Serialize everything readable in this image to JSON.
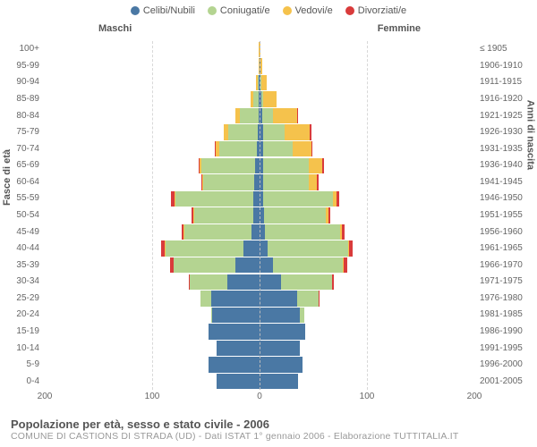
{
  "legend": [
    {
      "label": "Celibi/Nubili",
      "color": "#4a78a4"
    },
    {
      "label": "Coniugati/e",
      "color": "#b4d491"
    },
    {
      "label": "Vedovi/e",
      "color": "#f5c24c"
    },
    {
      "label": "Divorziati/e",
      "color": "#d93b3b"
    }
  ],
  "headers": {
    "male": "Maschi",
    "female": "Femmine"
  },
  "axis_left_title": "Fasce di età",
  "axis_right_title": "Anni di nascita",
  "footer_title": "Popolazione per età, sesso e stato civile - 2006",
  "footer_sub": "COMUNE DI CASTIONS DI STRADA (UD) - Dati ISTAT 1° gennaio 2006 - Elaborazione TUTTITALIA.IT",
  "x_max": 200,
  "x_ticks": [
    200,
    100,
    0,
    100,
    200
  ],
  "chart": {
    "background": "#ffffff",
    "grid_color": "#d8d8d8",
    "center_color": "#bbbbbb",
    "bar_gap": 1,
    "colors": {
      "single": "#4a78a4",
      "married": "#b4d491",
      "widowed": "#f5c24c",
      "divorced": "#d93b3b"
    }
  },
  "rows": [
    {
      "age": "100+",
      "birth": "≤ 1905",
      "m": {
        "single": 0,
        "married": 0,
        "widowed": 2,
        "divorced": 0
      },
      "f": {
        "single": 0,
        "married": 0,
        "widowed": 2,
        "divorced": 0
      }
    },
    {
      "age": "95-99",
      "birth": "1906-1910",
      "m": {
        "single": 0,
        "married": 0,
        "widowed": 1,
        "divorced": 0
      },
      "f": {
        "single": 1,
        "married": 0,
        "widowed": 4,
        "divorced": 0
      }
    },
    {
      "age": "90-94",
      "birth": "1911-1915",
      "m": {
        "single": 1,
        "married": 2,
        "widowed": 3,
        "divorced": 0
      },
      "f": {
        "single": 2,
        "married": 1,
        "widowed": 10,
        "divorced": 0
      }
    },
    {
      "age": "85-89",
      "birth": "1916-1920",
      "m": {
        "single": 1,
        "married": 10,
        "widowed": 5,
        "divorced": 0
      },
      "f": {
        "single": 3,
        "married": 4,
        "widowed": 25,
        "divorced": 0
      }
    },
    {
      "age": "80-84",
      "birth": "1921-1925",
      "m": {
        "single": 2,
        "married": 35,
        "widowed": 8,
        "divorced": 0
      },
      "f": {
        "single": 5,
        "married": 20,
        "widowed": 45,
        "divorced": 2
      }
    },
    {
      "age": "75-79",
      "birth": "1926-1930",
      "m": {
        "single": 3,
        "married": 55,
        "widowed": 8,
        "divorced": 1
      },
      "f": {
        "single": 6,
        "married": 40,
        "widowed": 48,
        "divorced": 2
      }
    },
    {
      "age": "70-74",
      "birth": "1931-1935",
      "m": {
        "single": 5,
        "married": 70,
        "widowed": 6,
        "divorced": 2
      },
      "f": {
        "single": 6,
        "married": 55,
        "widowed": 35,
        "divorced": 3
      }
    },
    {
      "age": "65-69",
      "birth": "1936-1940",
      "m": {
        "single": 8,
        "married": 100,
        "widowed": 4,
        "divorced": 2
      },
      "f": {
        "single": 7,
        "married": 85,
        "widowed": 25,
        "divorced": 3
      }
    },
    {
      "age": "60-64",
      "birth": "1941-1945",
      "m": {
        "single": 10,
        "married": 95,
        "widowed": 2,
        "divorced": 2
      },
      "f": {
        "single": 6,
        "married": 85,
        "widowed": 15,
        "divorced": 4
      }
    },
    {
      "age": "55-59",
      "birth": "1946-1950",
      "m": {
        "single": 12,
        "married": 145,
        "widowed": 2,
        "divorced": 6
      },
      "f": {
        "single": 6,
        "married": 130,
        "widowed": 8,
        "divorced": 5
      }
    },
    {
      "age": "50-54",
      "birth": "1951-1955",
      "m": {
        "single": 12,
        "married": 110,
        "widowed": 1,
        "divorced": 3
      },
      "f": {
        "single": 8,
        "married": 115,
        "widowed": 5,
        "divorced": 4
      }
    },
    {
      "age": "45-49",
      "birth": "1956-1960",
      "m": {
        "single": 15,
        "married": 125,
        "widowed": 1,
        "divorced": 4
      },
      "f": {
        "single": 10,
        "married": 140,
        "widowed": 3,
        "divorced": 5
      }
    },
    {
      "age": "40-44",
      "birth": "1961-1965",
      "m": {
        "single": 30,
        "married": 145,
        "widowed": 1,
        "divorced": 8
      },
      "f": {
        "single": 15,
        "married": 150,
        "widowed": 2,
        "divorced": 6
      }
    },
    {
      "age": "35-39",
      "birth": "1966-1970",
      "m": {
        "single": 45,
        "married": 115,
        "widowed": 0,
        "divorced": 6
      },
      "f": {
        "single": 25,
        "married": 130,
        "widowed": 1,
        "divorced": 8
      }
    },
    {
      "age": "30-34",
      "birth": "1971-1975",
      "m": {
        "single": 60,
        "married": 70,
        "widowed": 0,
        "divorced": 2
      },
      "f": {
        "single": 40,
        "married": 95,
        "widowed": 0,
        "divorced": 3
      }
    },
    {
      "age": "25-29",
      "birth": "1976-1980",
      "m": {
        "single": 90,
        "married": 20,
        "widowed": 0,
        "divorced": 0
      },
      "f": {
        "single": 70,
        "married": 40,
        "widowed": 0,
        "divorced": 1
      }
    },
    {
      "age": "20-24",
      "birth": "1981-1985",
      "m": {
        "single": 88,
        "married": 2,
        "widowed": 0,
        "divorced": 0
      },
      "f": {
        "single": 75,
        "married": 8,
        "widowed": 0,
        "divorced": 0
      }
    },
    {
      "age": "15-19",
      "birth": "1986-1990",
      "m": {
        "single": 95,
        "married": 0,
        "widowed": 0,
        "divorced": 0
      },
      "f": {
        "single": 85,
        "married": 0,
        "widowed": 0,
        "divorced": 0
      }
    },
    {
      "age": "10-14",
      "birth": "1991-1995",
      "m": {
        "single": 80,
        "married": 0,
        "widowed": 0,
        "divorced": 0
      },
      "f": {
        "single": 75,
        "married": 0,
        "widowed": 0,
        "divorced": 0
      }
    },
    {
      "age": "5-9",
      "birth": "1996-2000",
      "m": {
        "single": 95,
        "married": 0,
        "widowed": 0,
        "divorced": 0
      },
      "f": {
        "single": 80,
        "married": 0,
        "widowed": 0,
        "divorced": 0
      }
    },
    {
      "age": "0-4",
      "birth": "2001-2005",
      "m": {
        "single": 80,
        "married": 0,
        "widowed": 0,
        "divorced": 0
      },
      "f": {
        "single": 72,
        "married": 0,
        "widowed": 0,
        "divorced": 0
      }
    }
  ]
}
